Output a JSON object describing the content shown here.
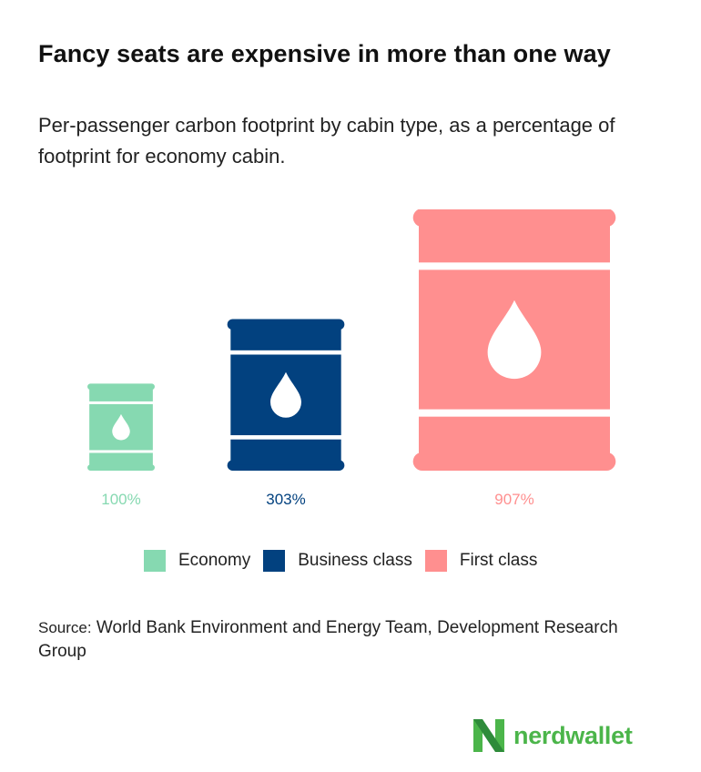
{
  "title": "Fancy seats are expensive in more than one way",
  "subtitle": "Per-passenger carbon footprint by cabin type, as a percentage of footprint for economy cabin.",
  "chart_data": {
    "type": "bar",
    "unit": "%",
    "categories": [
      "Economy",
      "Business class",
      "First class"
    ],
    "values": [
      100,
      303,
      907
    ],
    "value_labels": [
      "100%",
      "303%",
      "907%"
    ],
    "colors": [
      "#86d9b1",
      "#02417f",
      "#ff8f8f"
    ],
    "legend": [
      "Economy",
      "Business class",
      "First class"
    ],
    "legend_position": "bottom",
    "grid": false,
    "icon": "oil-barrel-icon"
  },
  "source": {
    "prefix": "Source:",
    "text": "World Bank Environment and Energy Team, Development Research Group"
  },
  "logo": {
    "text": "nerdwallet",
    "icon": "nerdwallet-logo-icon",
    "color": "#4bb54a"
  }
}
